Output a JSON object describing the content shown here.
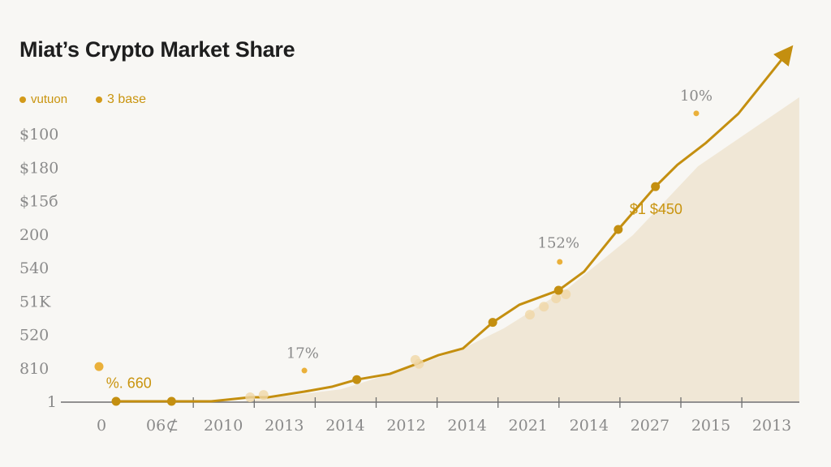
{
  "chart_data": {
    "type": "line",
    "title": "Miat’s Crypto Market Share",
    "legend": {
      "placement": "top-left",
      "entries": [
        {
          "label": "vutuon",
          "color": "#d39a1a"
        },
        {
          "label": "3 base",
          "color": "#d39a1a"
        }
      ]
    },
    "x_tick_labels": [
      "0",
      "06⊄",
      "2010",
      "2013",
      "2014",
      "2012",
      "2014",
      "2021",
      "2014",
      "2027",
      "2015",
      "2013"
    ],
    "y_tick_labels": [
      "1",
      "810",
      "520",
      "51K",
      "540",
      "200",
      "$15б",
      "$180",
      "$100"
    ],
    "grid": false,
    "colors": {
      "line": "#c48f10",
      "marker": "#c48f10",
      "area": "#efe4d0",
      "highlight": "#eab03a",
      "light_marker": "#f0d7a6"
    },
    "series": [
      {
        "points": [
          [
            0.24,
            0
          ],
          [
            1.15,
            0
          ],
          [
            1.8,
            0
          ],
          [
            2.44,
            0.12
          ],
          [
            2.73,
            0.12
          ],
          [
            3.33,
            0.29
          ],
          [
            3.79,
            0.44
          ],
          [
            4.19,
            0.65
          ],
          [
            4.73,
            0.82
          ],
          [
            5.13,
            1.09
          ],
          [
            5.53,
            1.38
          ],
          [
            5.93,
            1.58
          ],
          [
            6.42,
            2.36
          ],
          [
            6.86,
            2.89
          ],
          [
            7.5,
            3.32
          ],
          [
            7.92,
            3.88
          ],
          [
            8.48,
            5.14
          ],
          [
            9.09,
            6.42
          ],
          [
            9.45,
            7.07
          ],
          [
            9.92,
            7.73
          ],
          [
            10.45,
            8.6
          ],
          [
            11.25,
            10.42
          ]
        ],
        "markers": [
          [
            0.24,
            0
          ],
          [
            1.15,
            0
          ],
          [
            4.19,
            0.65
          ],
          [
            6.42,
            2.36
          ],
          [
            7.5,
            3.32
          ],
          [
            8.48,
            5.14
          ],
          [
            9.09,
            6.42
          ]
        ],
        "arrow_end": true
      }
    ],
    "area": [
      [
        2.33,
        0
      ],
      [
        3.93,
        0.36
      ],
      [
        5.0,
        0.97
      ],
      [
        5.93,
        1.58
      ],
      [
        6.6,
        2.18
      ],
      [
        7.66,
        3.39
      ],
      [
        8.72,
        4.97
      ],
      [
        9.79,
        7.03
      ],
      [
        11.45,
        9.09
      ],
      [
        11.45,
        0
      ]
    ],
    "light_markers": [
      [
        2.44,
        0.12
      ],
      [
        2.66,
        0.19
      ],
      [
        5.15,
        1.24
      ],
      [
        5.21,
        1.12
      ],
      [
        7.03,
        2.59
      ],
      [
        7.26,
        2.83
      ],
      [
        7.46,
        3.08
      ],
      [
        7.62,
        3.2
      ]
    ],
    "highlight_points": [
      [
        -0.04,
        1.04
      ],
      [
        3.33,
        0.92
      ],
      [
        7.52,
        4.17
      ],
      [
        9.76,
        8.61
      ]
    ],
    "annotations": [
      {
        "text": "10%",
        "x": 9.76,
        "y": 9.0,
        "style": "gray"
      },
      {
        "text": "152%",
        "x": 7.5,
        "y": 4.6,
        "style": "gray"
      },
      {
        "text": "17%",
        "x": 3.3,
        "y": 1.3,
        "style": "gray"
      },
      {
        "text": "$1 $450",
        "x": 9.1,
        "y": 5.6,
        "style": "gold"
      },
      {
        "text": "%. 660",
        "x": 0.45,
        "y": 0.4,
        "style": "gold"
      }
    ],
    "xlim": [
      -0.67,
      11.45
    ],
    "ylim": [
      0,
      10.5
    ]
  }
}
